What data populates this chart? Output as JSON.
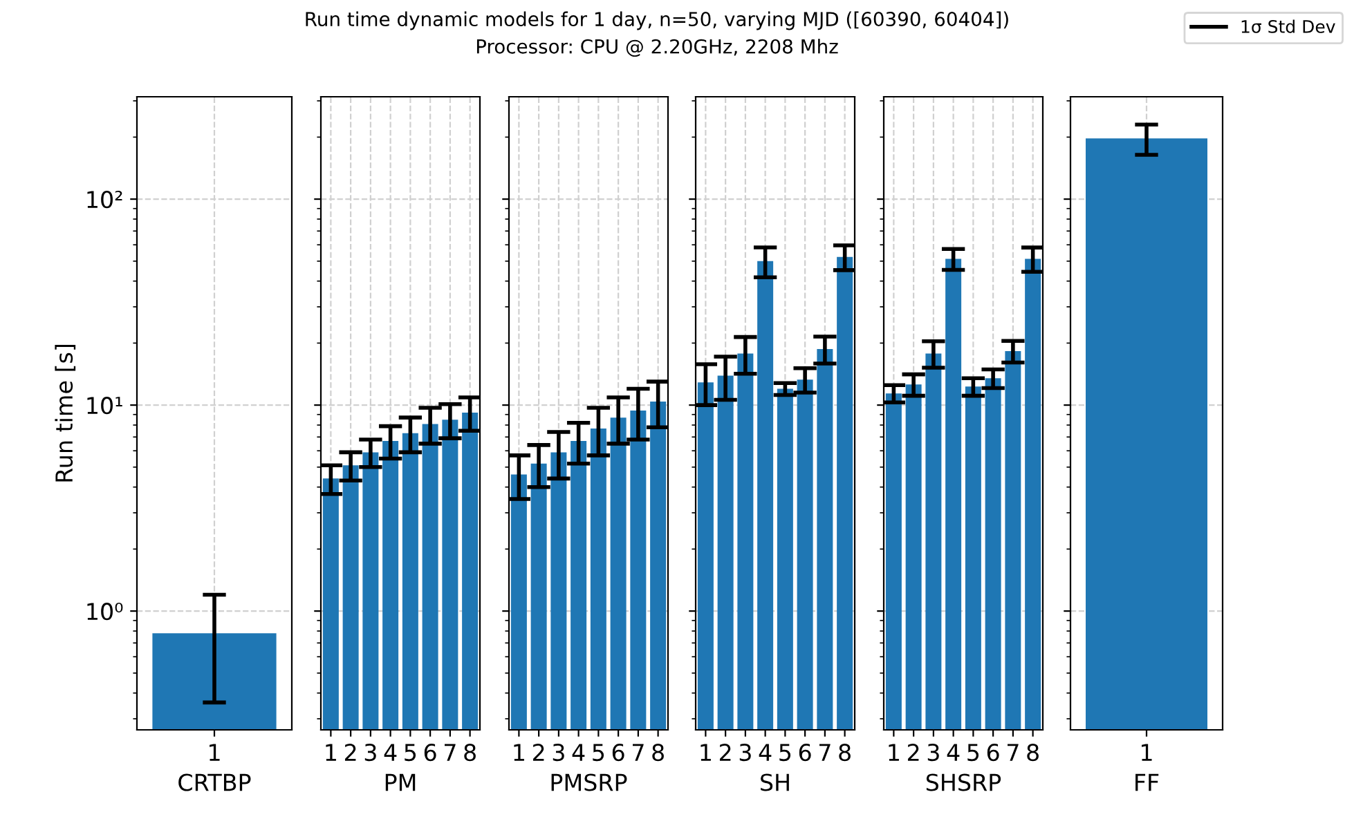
{
  "chart_data": [
    {
      "type": "other",
      "title": "Run time dynamic models for 1 day, n=50, varying MJD ([60390, 60404])",
      "subtitle": "Processor: CPU @ 2.20GHz, 2208 Mhz"
    },
    {
      "type": "bar",
      "xlabel": "CRTBP",
      "ylabel": "Run time [s]",
      "categories": [
        "1"
      ],
      "log": true,
      "grid": true,
      "ylim": [
        0.265,
        314
      ],
      "yticks": [
        {
          "value": 1,
          "label": "10⁰"
        },
        {
          "value": 10,
          "label": "10¹"
        },
        {
          "value": 100,
          "label": "10²"
        }
      ],
      "series": [
        {
          "color": "#1f77b4",
          "values": [
            0.78
          ],
          "errors": [
            0.42
          ]
        }
      ]
    },
    {
      "type": "bar",
      "xlabel": "PM",
      "categories": [
        "1",
        "2",
        "3",
        "4",
        "5",
        "6",
        "7",
        "8"
      ],
      "log": true,
      "grid": true,
      "tick_labels": "x",
      "ylim": [
        0.265,
        314
      ],
      "yticks": [
        {
          "value": 1,
          "label": null
        },
        {
          "value": 10,
          "label": null
        },
        {
          "value": 100,
          "label": null
        }
      ],
      "series": [
        {
          "color": "#1f77b4",
          "values": [
            4.4,
            5.1,
            5.9,
            6.7,
            7.3,
            8.1,
            8.5,
            9.2
          ],
          "errors": [
            0.7,
            0.8,
            0.9,
            1.2,
            1.4,
            1.6,
            1.6,
            1.7
          ]
        }
      ]
    },
    {
      "type": "bar",
      "xlabel": "PMSRP",
      "categories": [
        "1",
        "2",
        "3",
        "4",
        "5",
        "6",
        "7",
        "8"
      ],
      "log": true,
      "grid": true,
      "tick_labels": "x",
      "ylim": [
        0.265,
        314
      ],
      "yticks": [
        {
          "value": 1,
          "label": null
        },
        {
          "value": 10,
          "label": null
        },
        {
          "value": 100,
          "label": null
        }
      ],
      "series": [
        {
          "color": "#1f77b4",
          "values": [
            4.6,
            5.2,
            5.9,
            6.7,
            7.7,
            8.7,
            9.4,
            10.4
          ],
          "errors": [
            1.1,
            1.2,
            1.5,
            1.5,
            2.0,
            2.2,
            2.6,
            2.6
          ]
        }
      ]
    },
    {
      "type": "bar",
      "xlabel": "SH",
      "categories": [
        "1",
        "2",
        "3",
        "4",
        "5",
        "6",
        "7",
        "8"
      ],
      "log": true,
      "grid": true,
      "tick_labels": "x",
      "ylim": [
        0.265,
        314
      ],
      "yticks": [
        {
          "value": 1,
          "label": null
        },
        {
          "value": 10,
          "label": null
        },
        {
          "value": 100,
          "label": null
        }
      ],
      "series": [
        {
          "color": "#1f77b4",
          "values": [
            12.9,
            13.9,
            17.8,
            50,
            12.0,
            13.3,
            18.7,
            52.4
          ],
          "errors": [
            2.9,
            3.3,
            3.6,
            8.3,
            0.8,
            1.8,
            2.8,
            7.2
          ]
        }
      ]
    },
    {
      "type": "bar",
      "xlabel": "SHSRP",
      "categories": [
        "1",
        "2",
        "3",
        "4",
        "5",
        "6",
        "7",
        "8"
      ],
      "log": true,
      "grid": true,
      "tick_labels": "x",
      "ylim": [
        0.265,
        314
      ],
      "yticks": [
        {
          "value": 1,
          "label": null
        },
        {
          "value": 10,
          "label": null
        },
        {
          "value": 100,
          "label": null
        }
      ],
      "series": [
        {
          "color": "#1f77b4",
          "values": [
            11.4,
            12.6,
            17.8,
            51.3,
            12.3,
            13.5,
            18.3,
            51.3
          ],
          "errors": [
            1.1,
            1.5,
            2.6,
            6.0,
            1.2,
            1.4,
            2.2,
            6.9
          ]
        }
      ]
    },
    {
      "type": "bar",
      "xlabel": "FF",
      "categories": [
        "1"
      ],
      "log": true,
      "grid": true,
      "tick_labels": "x",
      "legend": "top right",
      "ylim": [
        0.265,
        314
      ],
      "yticks": [
        {
          "value": 1,
          "label": null
        },
        {
          "value": 10,
          "label": null
        },
        {
          "value": 100,
          "label": null
        }
      ],
      "series": [
        {
          "name": "1σ Std Dev",
          "color": "#1f77b4",
          "values": [
            197
          ],
          "errors": [
            33
          ]
        }
      ]
    }
  ]
}
